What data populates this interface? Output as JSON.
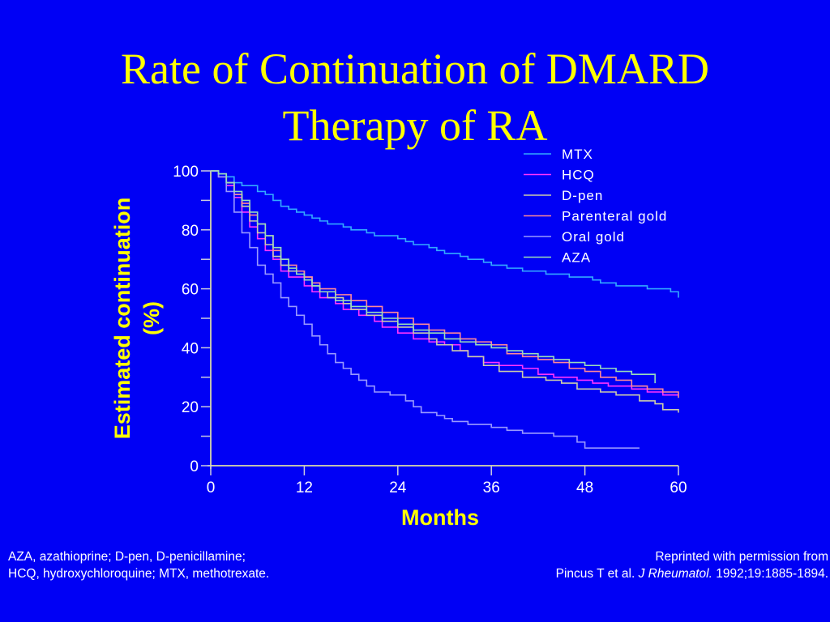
{
  "slide": {
    "title_line1": "Rate of Continuation of DMARD",
    "title_line2": "Therapy of RA",
    "background": "#0000f5",
    "title_color": "#ffff00"
  },
  "footnote_left": {
    "line1": "AZA, azathioprine; D-pen, D-penicillamine;",
    "line2": "HCQ, hydroxychloroquine; MTX, methotrexate."
  },
  "footnote_right": {
    "line1": "Reprinted with permission from",
    "line2_prefix": "Pincus T et al. ",
    "journal": "J Rheumatol.",
    "line2_suffix": " 1992;19:1885-1894."
  },
  "chart_data": {
    "type": "line",
    "step": true,
    "title": "",
    "xlabel": "Months",
    "ylabel_line1": "Estimated continuation",
    "ylabel_line2": "(%)",
    "xlim": [
      0,
      60
    ],
    "ylim": [
      0,
      100
    ],
    "xticks": [
      0,
      12,
      24,
      36,
      48,
      60
    ],
    "xtick_labels": [
      "0",
      "12",
      "24",
      "36",
      "48",
      "60"
    ],
    "yticks": [
      0,
      20,
      40,
      60,
      80,
      100
    ],
    "ytick_labels": [
      "0",
      "20",
      "40",
      "60",
      "80",
      "100"
    ],
    "yminor_ticks": [
      10,
      30,
      50,
      70,
      90
    ],
    "grid": false,
    "legend_position": "top-right",
    "axis_color": "#ffff99",
    "series": [
      {
        "name": "MTX",
        "color": "#33aaff",
        "points": [
          [
            0,
            100
          ],
          [
            1,
            99
          ],
          [
            2,
            98
          ],
          [
            3,
            96
          ],
          [
            4,
            95
          ],
          [
            6,
            93
          ],
          [
            7,
            92
          ],
          [
            8,
            90
          ],
          [
            9,
            88
          ],
          [
            10,
            87
          ],
          [
            11,
            86
          ],
          [
            12,
            85
          ],
          [
            13,
            84
          ],
          [
            14,
            83
          ],
          [
            15,
            82
          ],
          [
            17,
            81
          ],
          [
            18,
            80
          ],
          [
            20,
            79
          ],
          [
            21,
            78
          ],
          [
            24,
            77
          ],
          [
            25,
            76
          ],
          [
            26,
            75
          ],
          [
            28,
            74
          ],
          [
            29,
            73
          ],
          [
            30,
            72
          ],
          [
            32,
            71
          ],
          [
            33,
            70
          ],
          [
            35,
            69
          ],
          [
            36,
            68
          ],
          [
            38,
            67
          ],
          [
            40,
            66
          ],
          [
            43,
            65
          ],
          [
            46,
            64
          ],
          [
            49,
            63
          ],
          [
            50,
            62
          ],
          [
            52,
            61
          ],
          [
            56,
            60
          ],
          [
            59,
            59
          ],
          [
            60,
            57
          ]
        ]
      },
      {
        "name": "HCQ",
        "color": "#ff33ff",
        "points": [
          [
            0,
            100
          ],
          [
            1,
            98
          ],
          [
            2,
            95
          ],
          [
            3,
            91
          ],
          [
            4,
            86
          ],
          [
            5,
            81
          ],
          [
            6,
            77
          ],
          [
            7,
            73
          ],
          [
            8,
            70
          ],
          [
            9,
            66
          ],
          [
            10,
            64
          ],
          [
            12,
            61
          ],
          [
            13,
            59
          ],
          [
            14,
            57
          ],
          [
            16,
            55
          ],
          [
            17,
            53
          ],
          [
            19,
            51
          ],
          [
            21,
            49
          ],
          [
            22,
            47
          ],
          [
            24,
            45
          ],
          [
            26,
            43
          ],
          [
            28,
            42
          ],
          [
            30,
            41
          ],
          [
            32,
            39
          ],
          [
            33,
            37
          ],
          [
            35,
            35
          ],
          [
            37,
            34
          ],
          [
            40,
            33
          ],
          [
            42,
            31
          ],
          [
            44,
            30
          ],
          [
            47,
            29
          ],
          [
            49,
            28
          ],
          [
            51,
            27
          ],
          [
            54,
            26
          ],
          [
            56,
            25
          ],
          [
            58,
            24
          ],
          [
            60,
            24
          ]
        ]
      },
      {
        "name": "D-pen",
        "color": "#ccccaa",
        "points": [
          [
            0,
            100
          ],
          [
            1,
            99
          ],
          [
            2,
            96
          ],
          [
            3,
            92
          ],
          [
            4,
            88
          ],
          [
            5,
            83
          ],
          [
            6,
            79
          ],
          [
            7,
            75
          ],
          [
            8,
            71
          ],
          [
            9,
            68
          ],
          [
            10,
            66
          ],
          [
            12,
            64
          ],
          [
            13,
            61
          ],
          [
            14,
            59
          ],
          [
            15,
            57
          ],
          [
            17,
            55
          ],
          [
            18,
            53
          ],
          [
            20,
            51
          ],
          [
            22,
            49
          ],
          [
            24,
            47
          ],
          [
            26,
            45
          ],
          [
            28,
            43
          ],
          [
            29,
            41
          ],
          [
            31,
            39
          ],
          [
            33,
            37
          ],
          [
            35,
            34
          ],
          [
            37,
            32
          ],
          [
            40,
            30
          ],
          [
            43,
            29
          ],
          [
            45,
            28
          ],
          [
            47,
            26
          ],
          [
            50,
            25
          ],
          [
            52,
            24
          ],
          [
            55,
            22
          ],
          [
            57,
            21
          ],
          [
            58,
            19
          ],
          [
            60,
            18
          ]
        ]
      },
      {
        "name": "Parenteral gold",
        "color": "#ff8899",
        "points": [
          [
            0,
            100
          ],
          [
            1,
            98
          ],
          [
            2,
            96
          ],
          [
            3,
            92
          ],
          [
            4,
            89
          ],
          [
            5,
            85
          ],
          [
            6,
            82
          ],
          [
            7,
            78
          ],
          [
            8,
            73
          ],
          [
            9,
            70
          ],
          [
            10,
            68
          ],
          [
            11,
            66
          ],
          [
            12,
            64
          ],
          [
            13,
            62
          ],
          [
            14,
            60
          ],
          [
            16,
            58
          ],
          [
            18,
            56
          ],
          [
            20,
            54
          ],
          [
            22,
            52
          ],
          [
            24,
            50
          ],
          [
            26,
            48
          ],
          [
            28,
            46
          ],
          [
            30,
            45
          ],
          [
            32,
            43
          ],
          [
            34,
            42
          ],
          [
            36,
            41
          ],
          [
            38,
            38
          ],
          [
            40,
            37
          ],
          [
            42,
            36
          ],
          [
            44,
            35
          ],
          [
            46,
            33
          ],
          [
            48,
            32
          ],
          [
            50,
            30
          ],
          [
            52,
            29
          ],
          [
            54,
            27
          ],
          [
            56,
            26
          ],
          [
            58,
            25
          ],
          [
            60,
            23
          ]
        ]
      },
      {
        "name": "Oral gold",
        "color": "#9999ff",
        "points": [
          [
            0,
            100
          ],
          [
            1,
            98
          ],
          [
            2,
            93
          ],
          [
            3,
            86
          ],
          [
            4,
            79
          ],
          [
            5,
            74
          ],
          [
            6,
            68
          ],
          [
            7,
            65
          ],
          [
            8,
            62
          ],
          [
            9,
            57
          ],
          [
            10,
            54
          ],
          [
            11,
            51
          ],
          [
            12,
            48
          ],
          [
            13,
            44
          ],
          [
            14,
            41
          ],
          [
            15,
            38
          ],
          [
            16,
            35
          ],
          [
            17,
            33
          ],
          [
            18,
            31
          ],
          [
            19,
            29
          ],
          [
            20,
            27
          ],
          [
            21,
            25
          ],
          [
            23,
            24
          ],
          [
            25,
            22
          ],
          [
            26,
            20
          ],
          [
            27,
            18
          ],
          [
            29,
            17
          ],
          [
            30,
            16
          ],
          [
            31,
            15
          ],
          [
            33,
            14
          ],
          [
            36,
            13
          ],
          [
            38,
            12
          ],
          [
            40,
            11
          ],
          [
            44,
            10
          ],
          [
            47,
            8
          ],
          [
            48,
            6
          ],
          [
            55,
            6
          ]
        ]
      },
      {
        "name": "AZA",
        "color": "#99ddbb",
        "points": [
          [
            0,
            100
          ],
          [
            1,
            99
          ],
          [
            2,
            96
          ],
          [
            3,
            93
          ],
          [
            4,
            90
          ],
          [
            5,
            86
          ],
          [
            6,
            82
          ],
          [
            7,
            78
          ],
          [
            8,
            74
          ],
          [
            9,
            70
          ],
          [
            10,
            67
          ],
          [
            11,
            65
          ],
          [
            12,
            63
          ],
          [
            13,
            61
          ],
          [
            14,
            59
          ],
          [
            16,
            56
          ],
          [
            18,
            54
          ],
          [
            20,
            52
          ],
          [
            22,
            50
          ],
          [
            24,
            48
          ],
          [
            26,
            46
          ],
          [
            28,
            45
          ],
          [
            30,
            43
          ],
          [
            32,
            42
          ],
          [
            34,
            41
          ],
          [
            36,
            40
          ],
          [
            38,
            39
          ],
          [
            40,
            38
          ],
          [
            42,
            37
          ],
          [
            44,
            36
          ],
          [
            46,
            35
          ],
          [
            48,
            34
          ],
          [
            50,
            33
          ],
          [
            52,
            32
          ],
          [
            54,
            31
          ],
          [
            56,
            31
          ],
          [
            57,
            29
          ],
          [
            57,
            28
          ]
        ]
      }
    ]
  }
}
